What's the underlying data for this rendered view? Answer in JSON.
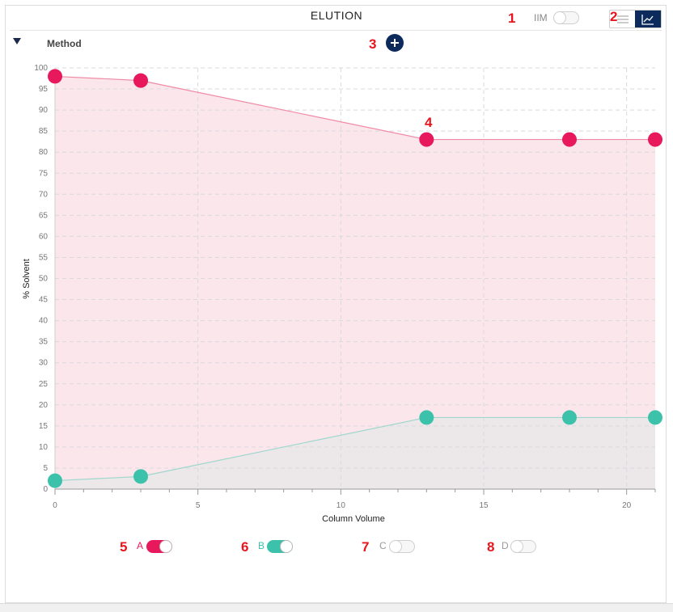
{
  "header": {
    "title": "ELUTION",
    "iim_label": "IIM",
    "iim_enabled": false
  },
  "method": {
    "label": "Method"
  },
  "markers": [
    "1",
    "2",
    "3",
    "4",
    "5",
    "6",
    "7",
    "8"
  ],
  "icons": {
    "list_view": "list-icon",
    "chart_view": "line-chart-icon",
    "add": "plus-icon",
    "collapse": "caret-down-icon"
  },
  "colors": {
    "solvent_a": "#e8185d",
    "solvent_b": "#3cc2aa",
    "area_a": "#fbe6ec",
    "area_b": "#ece8ea",
    "accent": "#0d2a5c"
  },
  "chart_data": {
    "type": "area",
    "xlabel": "Column Volume",
    "ylabel": "% Solvent",
    "xlim": [
      0,
      21
    ],
    "ylim": [
      0,
      100
    ],
    "x_ticks": [
      "0",
      "5",
      "10",
      "15",
      "20"
    ],
    "y_ticks": [
      "0",
      "5",
      "10",
      "15",
      "20",
      "25",
      "30",
      "35",
      "40",
      "45",
      "50",
      "55",
      "60",
      "65",
      "70",
      "75",
      "80",
      "85",
      "90",
      "95",
      "100"
    ],
    "grid": true,
    "series": [
      {
        "name": "A",
        "x": [
          0,
          3,
          13,
          18,
          21
        ],
        "y": [
          98,
          97,
          83,
          83,
          83
        ]
      },
      {
        "name": "B",
        "x": [
          0,
          3,
          13,
          18,
          21
        ],
        "y": [
          2,
          3,
          17,
          17,
          17
        ]
      }
    ]
  },
  "legend": [
    {
      "label": "A",
      "enabled": true
    },
    {
      "label": "B",
      "enabled": true
    },
    {
      "label": "C",
      "enabled": false
    },
    {
      "label": "D",
      "enabled": false
    }
  ]
}
